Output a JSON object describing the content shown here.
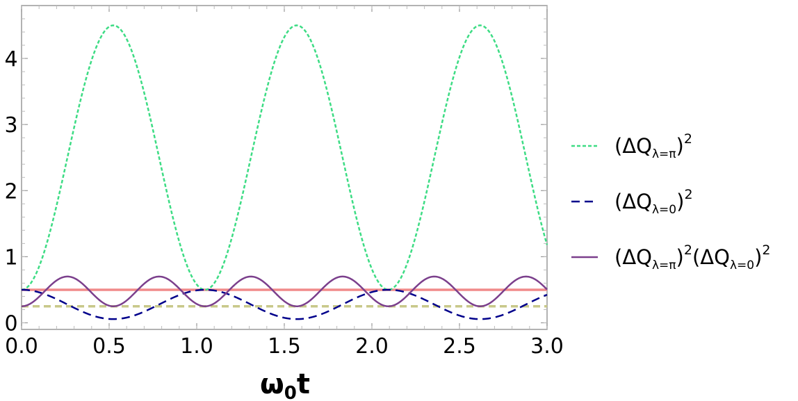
{
  "chart_data": {
    "type": "line",
    "title": "",
    "xlabel": "ω",
    "xlabel_subscript": "0",
    "xlabel_suffix": "t",
    "ylabel": "",
    "xlim": [
      0,
      3.0
    ],
    "ylim": [
      -0.1,
      4.8
    ],
    "xticks": [
      "0.0",
      "0.5",
      "1.0",
      "1.5",
      "2.0",
      "2.5",
      "3.0"
    ],
    "xtick_values": [
      0,
      0.5,
      1.0,
      1.5,
      2.0,
      2.5,
      3.0
    ],
    "yticks": [
      "0",
      "1",
      "2",
      "3",
      "4"
    ],
    "ytick_values": [
      0,
      1,
      2,
      3,
      4
    ],
    "period": 1.0472,
    "series": [
      {
        "name": "(ΔQλ=π)²",
        "style": "dotted",
        "color": "#3ddc84",
        "min": 0.5,
        "max": 4.5,
        "phase": "max-at-half-period"
      },
      {
        "name": "(ΔQλ=0)²",
        "style": "dashed",
        "color": "#00008b",
        "min": 0.056,
        "max": 0.5,
        "phase": "min-at-half-period"
      },
      {
        "name": "(ΔQλ=π)²(ΔQλ=0)²",
        "style": "solid",
        "color": "#7b3f8c",
        "min": 0.25,
        "max": 0.7,
        "frequency_multiplier": 2
      },
      {
        "name": "",
        "style": "solid",
        "color": "#f08a8a",
        "constant": 0.5
      },
      {
        "name": "",
        "style": "dashed",
        "color": "#c8c88a",
        "constant": 0.25
      }
    ],
    "legend_position": "right",
    "legend": [
      {
        "label_main": "(ΔQ",
        "label_sub": "λ=π",
        "label_close": ")",
        "label_sup": "2",
        "extra_main": "",
        "extra_sub": "",
        "extra_close": "",
        "extra_sup": ""
      },
      {
        "label_main": "(ΔQ",
        "label_sub": "λ=0",
        "label_close": ")",
        "label_sup": "2",
        "extra_main": "",
        "extra_sub": "",
        "extra_close": "",
        "extra_sup": ""
      },
      {
        "label_main": "(ΔQ",
        "label_sub": "λ=π",
        "label_close": ")",
        "label_sup": "2",
        "extra_main": "(ΔQ",
        "extra_sub": "λ=0",
        "extra_close": ")",
        "extra_sup": "2"
      }
    ]
  }
}
